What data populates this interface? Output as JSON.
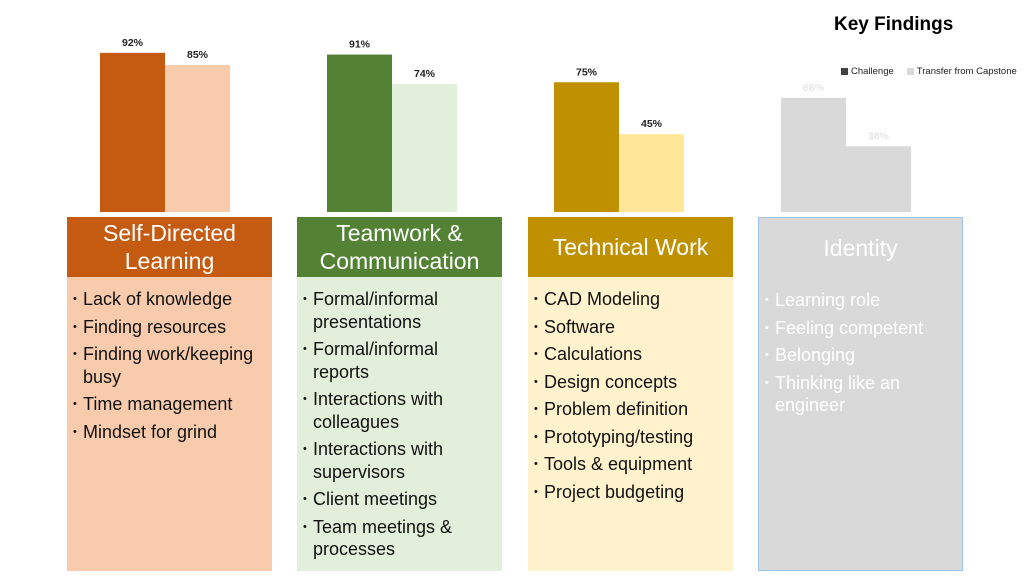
{
  "colors": {
    "sdl_challenge": "#c55a11",
    "sdl_transfer": "#f8cbad",
    "sdl_body": "#f8cbad",
    "team_challenge": "#548235",
    "team_transfer": "#e2efda",
    "team_body": "#e2efda",
    "tech_challenge": "#bf9000",
    "tech_transfer": "#ffe699",
    "tech_body": "#fff2cc",
    "id_challenge": "#d9d9d9",
    "id_transfer": "#d9d9d9",
    "id_body": "#d9d9d9",
    "legend_challenge": "#404040",
    "legend_transfer": "#d9d9d9"
  },
  "chart_data": {
    "type": "bar",
    "title": "Key Findings",
    "categories": [
      "Self-Directed Learning",
      "Teamwork & Communication",
      "Technical Work",
      "Identity"
    ],
    "series": [
      {
        "name": "Challenge",
        "values": [
          92,
          91,
          75,
          66
        ]
      },
      {
        "name": "Transfer from Capstone",
        "values": [
          85,
          74,
          45,
          38
        ]
      }
    ],
    "labels": {
      "challenge": [
        "92%",
        "91%",
        "75%",
        "66%"
      ],
      "transfer": [
        "85%",
        "74%",
        "45%",
        "38%"
      ]
    },
    "ylim": [
      0,
      100
    ],
    "legend_position": "top-right",
    "grid": false
  },
  "columns": [
    {
      "heading": "Self-Directed Learning",
      "items": [
        "Lack of knowledge",
        "Finding resources",
        "Finding work/keeping busy",
        "Time management",
        "Mindset for grind"
      ]
    },
    {
      "heading": "Teamwork & Communication",
      "items": [
        "Formal/informal presentations",
        "Formal/informal reports",
        "Interactions with colleagues",
        "Interactions with supervisors",
        "Client meetings",
        "Team meetings & processes"
      ]
    },
    {
      "heading": "Technical Work",
      "items": [
        "CAD Modeling",
        "Software",
        "Calculations",
        "Design concepts",
        "Problem definition",
        "Prototyping/testing",
        "Tools & equipment",
        "Project budgeting"
      ]
    },
    {
      "heading": "Identity",
      "items": [
        "Learning role",
        "Feeling competent",
        "Belonging",
        "Thinking like an engineer"
      ]
    }
  ]
}
